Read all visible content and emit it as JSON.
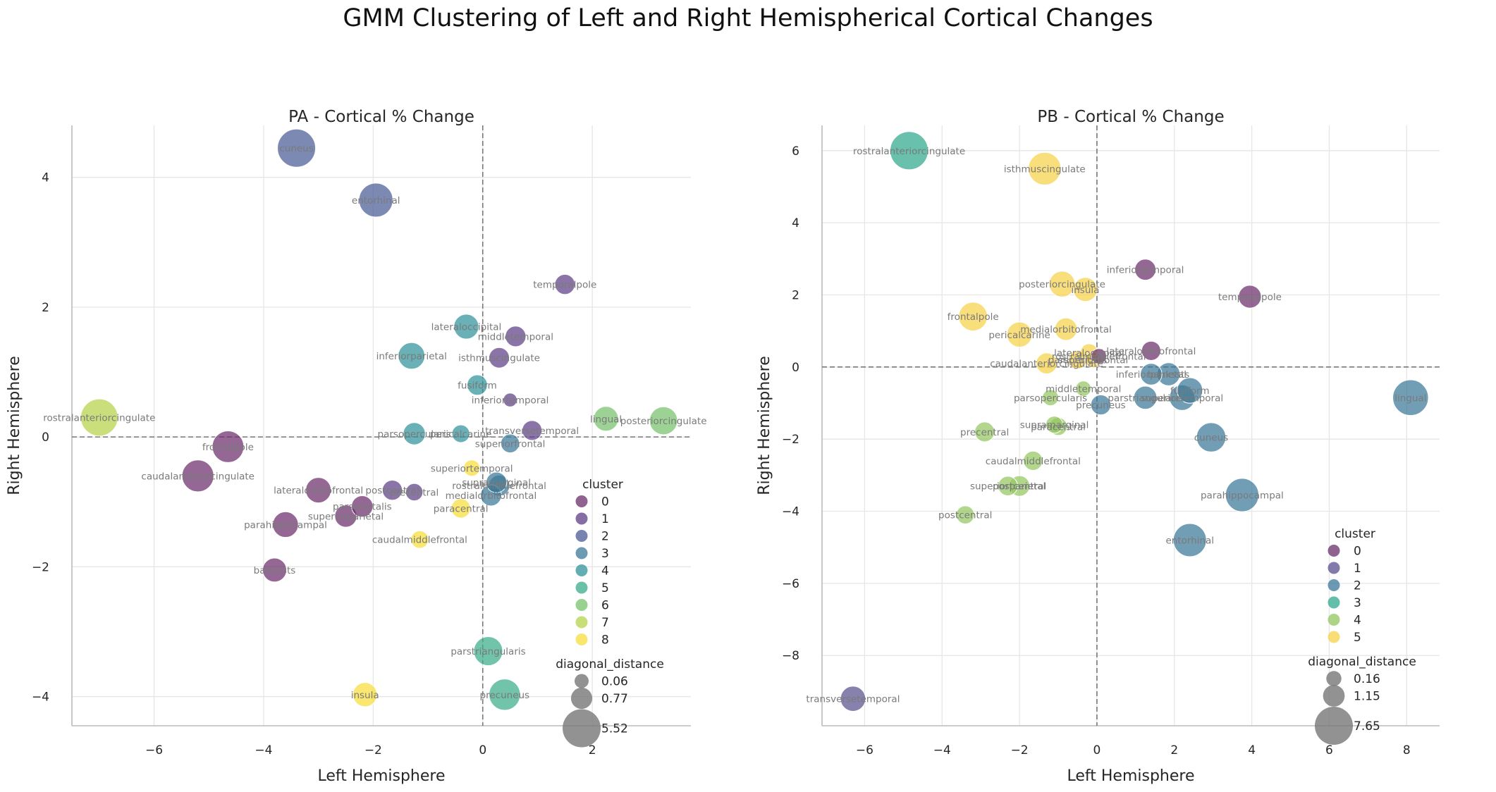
{
  "figure_title": "GMM Clustering of Left and Right Hemispherical Cortical Changes",
  "palette_6": [
    "#6b2d6b",
    "#59508f",
    "#3a7898",
    "#2fa88d",
    "#93c65f",
    "#f7d14a"
  ],
  "palette_9": [
    "#6b2d6b",
    "#5e3e86",
    "#4a5b95",
    "#3a7898",
    "#2f939a",
    "#3aac89",
    "#76c26b",
    "#b6d34a",
    "#f7de3c"
  ],
  "chart_data": [
    {
      "type": "scatter",
      "title": "PA - Cortical % Change",
      "xlabel": "Left Hemisphere",
      "ylabel": "Right Hemisphere",
      "xlim": [
        -7.5,
        3.8
      ],
      "ylim": [
        -4.45,
        4.8
      ],
      "xticks": [
        -6,
        -4,
        -2,
        0,
        2
      ],
      "yticks": [
        -4,
        -2,
        0,
        2,
        4
      ],
      "xtick_labels": [
        "−6",
        "−4",
        "−2",
        "0",
        "2"
      ],
      "ytick_labels": [
        "−4",
        "−2",
        "0",
        "2",
        "4"
      ],
      "legend_cluster_title": "cluster",
      "legend_clusters": [
        "0",
        "1",
        "2",
        "3",
        "4",
        "5",
        "6",
        "7",
        "8"
      ],
      "legend_size_title": "diagonal_distance",
      "legend_sizes": [
        "0.06",
        "0.77",
        "5.52"
      ],
      "legend_size_values": [
        0.06,
        0.77,
        5.52
      ],
      "size_max": 5.52,
      "points": [
        {
          "label": "cuneus",
          "x": -3.4,
          "y": 4.45,
          "cluster": 2
        },
        {
          "label": "entorhinal",
          "x": -1.95,
          "y": 3.65,
          "cluster": 2
        },
        {
          "label": "temporalpole",
          "x": 1.5,
          "y": 2.35,
          "cluster": 1
        },
        {
          "label": "lateraloccipital",
          "x": -0.3,
          "y": 1.7,
          "cluster": 4
        },
        {
          "label": "middletemporal",
          "x": 0.6,
          "y": 1.55,
          "cluster": 1
        },
        {
          "label": "inferiorparietal",
          "x": -1.3,
          "y": 1.25,
          "cluster": 4
        },
        {
          "label": "isthmuscingulate",
          "x": 0.3,
          "y": 1.22,
          "cluster": 1
        },
        {
          "label": "fusiform",
          "x": -0.1,
          "y": 0.8,
          "cluster": 4
        },
        {
          "label": "inferiortemporal",
          "x": 0.5,
          "y": 0.57,
          "cluster": 1
        },
        {
          "label": "rostralanteriorcingulate",
          "x": -7.0,
          "y": 0.3,
          "cluster": 7
        },
        {
          "label": "lingual",
          "x": 2.25,
          "y": 0.28,
          "cluster": 6
        },
        {
          "label": "posteriorcingulate",
          "x": 3.3,
          "y": 0.25,
          "cluster": 6
        },
        {
          "label": "parsopercularis",
          "x": -1.25,
          "y": 0.05,
          "cluster": 4
        },
        {
          "label": "pericalcarine",
          "x": -0.4,
          "y": 0.05,
          "cluster": 4
        },
        {
          "label": "transversetemporal",
          "x": 0.9,
          "y": 0.1,
          "cluster": 1
        },
        {
          "label": "superiorfrontal",
          "x": 0.5,
          "y": -0.1,
          "cluster": 3
        },
        {
          "label": "frontalpole",
          "x": -4.65,
          "y": -0.15,
          "cluster": 0
        },
        {
          "label": "caudalanteriorcingulate",
          "x": -5.2,
          "y": -0.6,
          "cluster": 0
        },
        {
          "label": "superiortemporal",
          "x": -0.2,
          "y": -0.48,
          "cluster": 8
        },
        {
          "label": "supramarginal",
          "x": 0.25,
          "y": -0.7,
          "cluster": 3
        },
        {
          "label": "rostralmiddlefrontal",
          "x": 0.3,
          "y": -0.75,
          "cluster": 3
        },
        {
          "label": "medialorbitofrontal",
          "x": 0.15,
          "y": -0.9,
          "cluster": 3
        },
        {
          "label": "lateralorbitofrontal",
          "x": -3.0,
          "y": -0.82,
          "cluster": 0
        },
        {
          "label": "postcentral",
          "x": -1.65,
          "y": -0.82,
          "cluster": 1
        },
        {
          "label": "precentral",
          "x": -1.25,
          "y": -0.85,
          "cluster": 1
        },
        {
          "label": "parsorbitalis",
          "x": -2.2,
          "y": -1.07,
          "cluster": 0
        },
        {
          "label": "paracentral",
          "x": -0.4,
          "y": -1.1,
          "cluster": 8
        },
        {
          "label": "superiorparietal",
          "x": -2.5,
          "y": -1.22,
          "cluster": 0
        },
        {
          "label": "parahippocampal",
          "x": -3.6,
          "y": -1.35,
          "cluster": 0
        },
        {
          "label": "caudalmiddlefrontal",
          "x": -1.15,
          "y": -1.58,
          "cluster": 8
        },
        {
          "label": "bankssts",
          "x": -3.8,
          "y": -2.05,
          "cluster": 0
        },
        {
          "label": "parstriangularis",
          "x": 0.1,
          "y": -3.3,
          "cluster": 5
        },
        {
          "label": "insula",
          "x": -2.15,
          "y": -3.97,
          "cluster": 8
        },
        {
          "label": "precuneus",
          "x": 0.4,
          "y": -3.97,
          "cluster": 5
        }
      ]
    },
    {
      "type": "scatter",
      "title": "PB - Cortical % Change",
      "xlabel": "Left Hemisphere",
      "ylabel": "Right Hemisphere",
      "xlim": [
        -7.1,
        8.85
      ],
      "ylim": [
        -9.95,
        6.7
      ],
      "xticks": [
        -6,
        -4,
        -2,
        0,
        2,
        4,
        6,
        8
      ],
      "yticks": [
        -8,
        -6,
        -4,
        -2,
        0,
        2,
        4,
        6
      ],
      "xtick_labels": [
        "−6",
        "−4",
        "−2",
        "0",
        "2",
        "4",
        "6",
        "8"
      ],
      "ytick_labels": [
        "−8",
        "−6",
        "−4",
        "−2",
        "0",
        "2",
        "4",
        "6"
      ],
      "legend_cluster_title": "cluster",
      "legend_clusters": [
        "0",
        "1",
        "2",
        "3",
        "4",
        "5"
      ],
      "legend_size_title": "diagonal_distance",
      "legend_sizes": [
        "0.16",
        "1.15",
        "7.65"
      ],
      "legend_size_values": [
        0.16,
        1.15,
        7.65
      ],
      "size_max": 7.65,
      "points": [
        {
          "label": "rostralanteriorcingulate",
          "x": -4.85,
          "y": 6.0,
          "cluster": 3
        },
        {
          "label": "isthmuscingulate",
          "x": -1.35,
          "y": 5.5,
          "cluster": 5
        },
        {
          "label": "inferiortemporal",
          "x": 1.25,
          "y": 2.7,
          "cluster": 0
        },
        {
          "label": "posteriorcingulate",
          "x": -0.9,
          "y": 2.3,
          "cluster": 5
        },
        {
          "label": "insula",
          "x": -0.3,
          "y": 2.15,
          "cluster": 5
        },
        {
          "label": "temporalpole",
          "x": 3.95,
          "y": 1.95,
          "cluster": 0
        },
        {
          "label": "frontalpole",
          "x": -3.2,
          "y": 1.4,
          "cluster": 5
        },
        {
          "label": "medialorbitofrontal",
          "x": -0.8,
          "y": 1.05,
          "cluster": 5
        },
        {
          "label": "pericalcarine",
          "x": -2.0,
          "y": 0.9,
          "cluster": 5
        },
        {
          "label": "lateralorbitofrontal",
          "x": 1.4,
          "y": 0.45,
          "cluster": 0
        },
        {
          "label": "lateraloccipital",
          "x": -0.2,
          "y": 0.4,
          "cluster": 5
        },
        {
          "label": "caudalanteriorcingulate",
          "x": -1.3,
          "y": 0.1,
          "cluster": 5
        },
        {
          "label": "parsorbitalis",
          "x": -0.5,
          "y": 0.2,
          "cluster": 5
        },
        {
          "label": "superiorfrontal",
          "x": -0.1,
          "y": 0.2,
          "cluster": 5
        },
        {
          "label": "rostralmiddlefrontal",
          "x": 0.05,
          "y": 0.3,
          "cluster": 0
        },
        {
          "label": "inferiorparietal",
          "x": 1.4,
          "y": -0.2,
          "cluster": 2
        },
        {
          "label": "bankssts",
          "x": 1.85,
          "y": -0.2,
          "cluster": 2
        },
        {
          "label": "middletemporal",
          "x": -0.35,
          "y": -0.6,
          "cluster": 4
        },
        {
          "label": "fusiform",
          "x": 2.4,
          "y": -0.65,
          "cluster": 2
        },
        {
          "label": "parsopercularis",
          "x": -1.2,
          "y": -0.85,
          "cluster": 4
        },
        {
          "label": "parstriangularis",
          "x": 1.25,
          "y": -0.85,
          "cluster": 2
        },
        {
          "label": "superiortemporal",
          "x": 2.2,
          "y": -0.85,
          "cluster": 2
        },
        {
          "label": "lingual",
          "x": 8.1,
          "y": -0.85,
          "cluster": 2
        },
        {
          "label": "precuneus",
          "x": 0.1,
          "y": -1.05,
          "cluster": 2
        },
        {
          "label": "supramarginal",
          "x": -1.1,
          "y": -1.6,
          "cluster": 4
        },
        {
          "label": "paracentral",
          "x": -1.0,
          "y": -1.65,
          "cluster": 4
        },
        {
          "label": "precentral",
          "x": -2.9,
          "y": -1.8,
          "cluster": 4
        },
        {
          "label": "cuneus",
          "x": 2.95,
          "y": -1.95,
          "cluster": 2
        },
        {
          "label": "caudalmiddlefrontal",
          "x": -1.65,
          "y": -2.6,
          "cluster": 4
        },
        {
          "label": "superiorparietal",
          "x": -2.3,
          "y": -3.3,
          "cluster": 4
        },
        {
          "label": "postcentral",
          "x": -2.0,
          "y": -3.3,
          "cluster": 4
        },
        {
          "label": "parahippocampal",
          "x": 3.75,
          "y": -3.55,
          "cluster": 2
        },
        {
          "label": "postcentral",
          "x": -3.4,
          "y": -4.1,
          "cluster": 4
        },
        {
          "label": "entorhinal",
          "x": 2.4,
          "y": -4.8,
          "cluster": 2
        },
        {
          "label": "transversetemporal",
          "x": -6.3,
          "y": -9.2,
          "cluster": 1
        }
      ]
    }
  ]
}
